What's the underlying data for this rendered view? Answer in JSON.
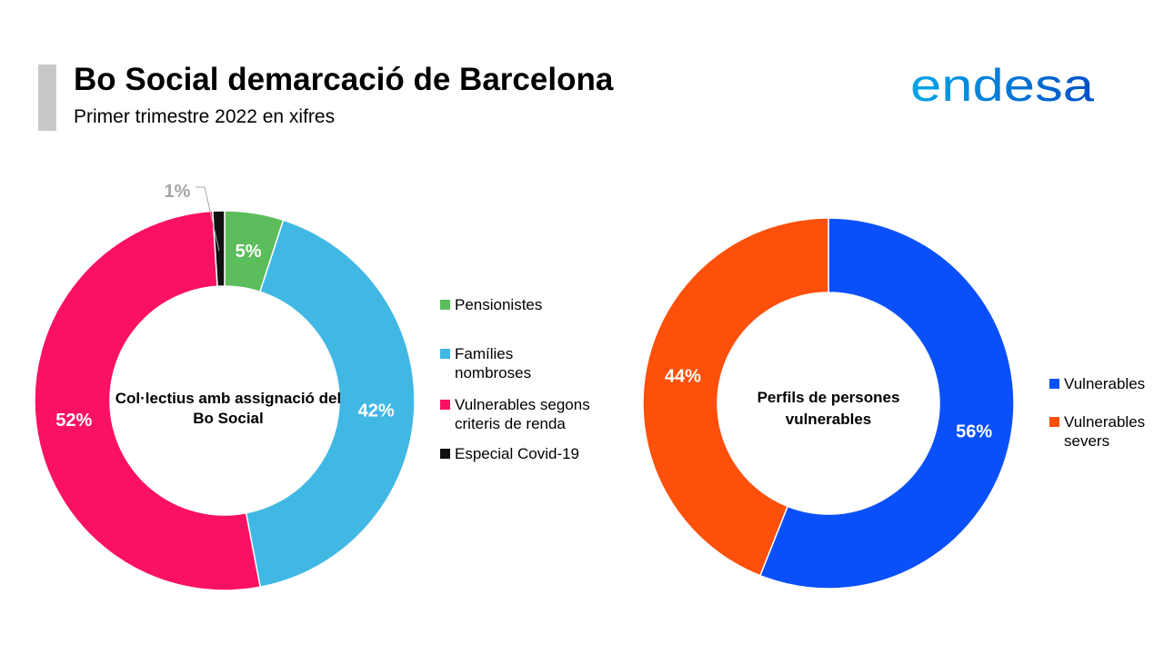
{
  "header": {
    "title": "Bo Social demarcació de Barcelona",
    "subtitle": "Primer trimestre 2022 en xifres"
  },
  "logo": {
    "text": "endesa",
    "colors": [
      "#00a6e6",
      "#0050c8"
    ]
  },
  "chart_data": [
    {
      "type": "pie",
      "variant": "donut",
      "center_label": "Col·lectius amb assignació del Bo Social",
      "categories": [
        "Pensionistes",
        "Famílies nombroses",
        "Vulnerables segons criteris de renda",
        "Especial Covid-19"
      ],
      "values": [
        5,
        42,
        52,
        1
      ],
      "value_labels": [
        "5%",
        "42%",
        "52%",
        "1%"
      ],
      "colors": [
        "#5cbd5c",
        "#41b8e4",
        "#fb1164",
        "#111111"
      ],
      "legend_position": "right"
    },
    {
      "type": "pie",
      "variant": "donut",
      "center_label": "Perfils de persones vulnerables",
      "categories": [
        "Vulnerables",
        "Vulnerables severs"
      ],
      "values": [
        56,
        44
      ],
      "value_labels": [
        "56%",
        "44%"
      ],
      "colors": [
        "#0a50fa",
        "#fd500a"
      ],
      "legend_position": "right"
    }
  ]
}
